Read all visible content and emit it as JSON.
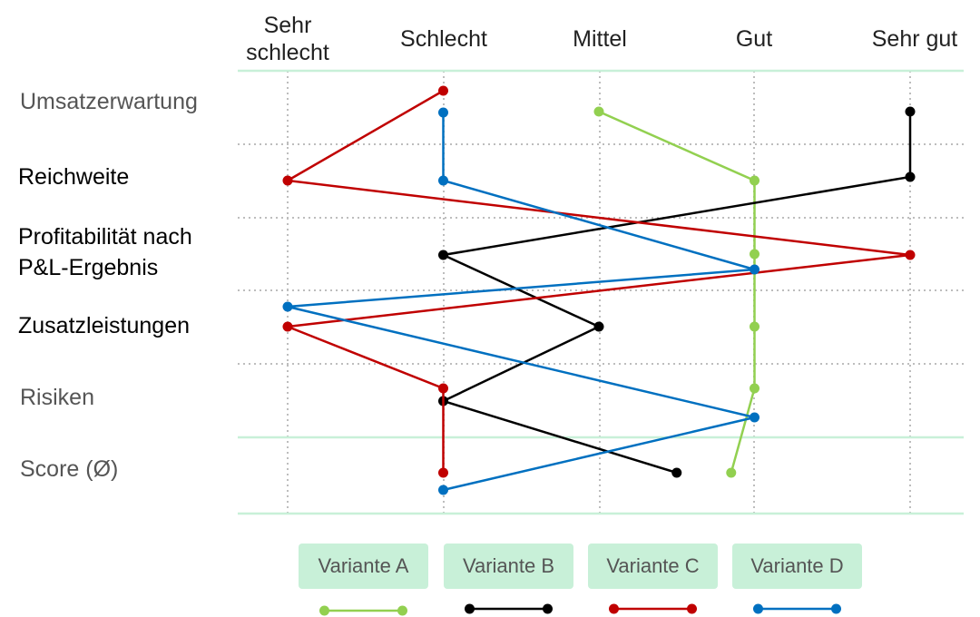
{
  "chart_data": {
    "type": "line",
    "columns": [
      "Sehr schlecht",
      "Schlecht",
      "Mittel",
      "Gut",
      "Sehr gut"
    ],
    "rows": [
      {
        "label": "Umsatzerwartung",
        "style": "gray"
      },
      {
        "label": "Reichweite",
        "style": "black"
      },
      {
        "label": "Profitabilität nach P&L-Ergebnis",
        "style": "black"
      },
      {
        "label": "Zusatzleistungen",
        "style": "black"
      },
      {
        "label": "Risiken",
        "style": "gray"
      },
      {
        "label": "Score (Ø)",
        "style": "gray"
      }
    ],
    "x_scale": {
      "min": 1,
      "max": 5
    },
    "series": [
      {
        "name": "Variante A",
        "color": "#92d050",
        "values": [
          3,
          4,
          4,
          4,
          4,
          3.85
        ]
      },
      {
        "name": "Variante B",
        "color": "#000000",
        "values": [
          5,
          5,
          2,
          3,
          2,
          3.5
        ]
      },
      {
        "name": "Variante C",
        "color": "#c00000",
        "values": [
          2,
          1,
          5,
          1,
          2,
          2
        ]
      },
      {
        "name": "Variante D",
        "color": "#0070c0",
        "values": [
          2,
          2,
          4,
          1,
          4,
          2
        ]
      }
    ],
    "grid": true,
    "legend_position": "bottom"
  }
}
